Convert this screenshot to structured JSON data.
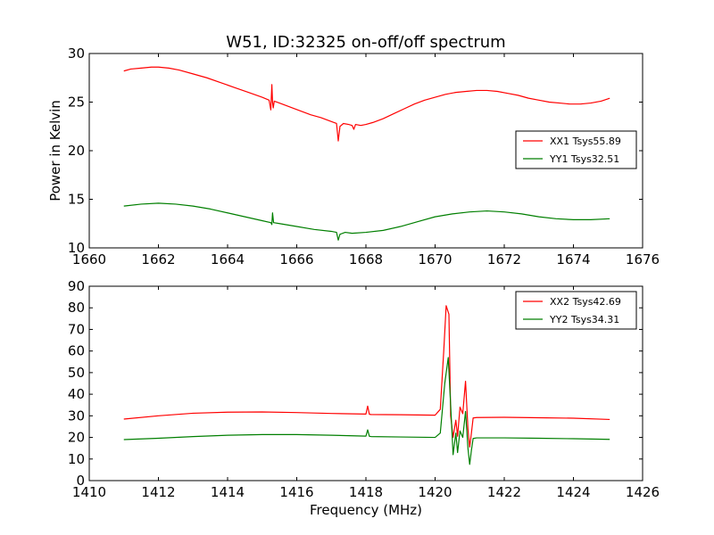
{
  "chart_data": [
    {
      "type": "line",
      "title": "W51, ID:32325 on-off/off spectrum",
      "xlabel": "",
      "ylabel": "Power in Kelvin",
      "xlim": [
        1660,
        1676
      ],
      "ylim": [
        10,
        30
      ],
      "xticks": [
        1660,
        1662,
        1664,
        1666,
        1668,
        1670,
        1672,
        1674,
        1676
      ],
      "yticks": [
        10,
        15,
        20,
        25,
        30
      ],
      "legend_position": "center-right",
      "series": [
        {
          "name": "XX1 Tsys55.89",
          "color": "#ff0000",
          "x": [
            1661.0,
            1661.2,
            1661.5,
            1661.8,
            1662.0,
            1662.3,
            1662.6,
            1663.0,
            1663.4,
            1663.8,
            1664.2,
            1664.6,
            1665.0,
            1665.2,
            1665.25,
            1665.28,
            1665.3,
            1665.32,
            1665.35,
            1665.5,
            1665.8,
            1666.1,
            1666.4,
            1666.7,
            1667.0,
            1667.15,
            1667.2,
            1667.25,
            1667.35,
            1667.5,
            1667.6,
            1667.65,
            1667.7,
            1667.85,
            1668.0,
            1668.2,
            1668.5,
            1668.8,
            1669.1,
            1669.4,
            1669.7,
            1670.0,
            1670.3,
            1670.6,
            1670.9,
            1671.2,
            1671.5,
            1671.8,
            1672.1,
            1672.4,
            1672.7,
            1673.0,
            1673.3,
            1673.6,
            1673.9,
            1674.2,
            1674.5,
            1674.8,
            1675.05
          ],
          "y": [
            28.2,
            28.4,
            28.5,
            28.6,
            28.6,
            28.5,
            28.3,
            27.9,
            27.5,
            27.0,
            26.5,
            26.0,
            25.5,
            25.2,
            24.2,
            26.8,
            25.0,
            24.4,
            25.1,
            24.9,
            24.5,
            24.1,
            23.7,
            23.4,
            23.0,
            22.8,
            21.0,
            22.5,
            22.8,
            22.7,
            22.6,
            22.2,
            22.7,
            22.6,
            22.7,
            22.9,
            23.3,
            23.8,
            24.3,
            24.8,
            25.2,
            25.5,
            25.8,
            26.0,
            26.1,
            26.2,
            26.2,
            26.1,
            25.9,
            25.7,
            25.4,
            25.2,
            25.0,
            24.9,
            24.8,
            24.8,
            24.9,
            25.1,
            25.4
          ]
        },
        {
          "name": "YY1 Tsys32.51",
          "color": "#007f00",
          "x": [
            1661.0,
            1661.5,
            1662.0,
            1662.5,
            1663.0,
            1663.5,
            1664.0,
            1664.5,
            1665.0,
            1665.25,
            1665.28,
            1665.3,
            1665.33,
            1665.5,
            1666.0,
            1666.5,
            1667.0,
            1667.15,
            1667.2,
            1667.25,
            1667.4,
            1667.6,
            1668.0,
            1668.5,
            1669.0,
            1669.5,
            1670.0,
            1670.5,
            1671.0,
            1671.5,
            1672.0,
            1672.5,
            1673.0,
            1673.5,
            1674.0,
            1674.5,
            1675.05
          ],
          "y": [
            14.3,
            14.5,
            14.6,
            14.5,
            14.3,
            14.0,
            13.6,
            13.2,
            12.8,
            12.6,
            12.4,
            13.6,
            12.6,
            12.5,
            12.2,
            11.9,
            11.7,
            11.6,
            10.8,
            11.4,
            11.6,
            11.5,
            11.6,
            11.8,
            12.2,
            12.7,
            13.2,
            13.5,
            13.7,
            13.8,
            13.7,
            13.5,
            13.2,
            13.0,
            12.9,
            12.9,
            13.0
          ]
        }
      ]
    },
    {
      "type": "line",
      "title": "",
      "xlabel": "Frequency (MHz)",
      "ylabel": "",
      "xlim": [
        1410,
        1426
      ],
      "ylim": [
        0,
        90
      ],
      "xticks": [
        1410,
        1412,
        1414,
        1416,
        1418,
        1420,
        1422,
        1424,
        1426
      ],
      "yticks": [
        0,
        10,
        20,
        30,
        40,
        50,
        60,
        70,
        80,
        90
      ],
      "legend_position": "top-right",
      "series": [
        {
          "name": "XX2 Tsys42.69",
          "color": "#ff0000",
          "x": [
            1411.0,
            1412.0,
            1413.0,
            1414.0,
            1415.0,
            1416.0,
            1417.0,
            1418.0,
            1418.05,
            1418.1,
            1418.15,
            1419.0,
            1420.0,
            1420.15,
            1420.25,
            1420.32,
            1420.4,
            1420.45,
            1420.52,
            1420.6,
            1420.65,
            1420.72,
            1420.8,
            1420.88,
            1420.95,
            1421.0,
            1421.05,
            1421.1,
            1421.2,
            1422.0,
            1423.0,
            1424.0,
            1425.05
          ],
          "y": [
            28.5,
            30.0,
            31.2,
            31.7,
            31.8,
            31.5,
            31.1,
            30.8,
            34.5,
            30.7,
            30.6,
            30.5,
            30.3,
            33.0,
            60.0,
            81.0,
            77.0,
            30.0,
            20.0,
            28.0,
            20.5,
            34.0,
            31.0,
            46.0,
            24.0,
            15.5,
            22.0,
            29.0,
            29.2,
            29.3,
            29.1,
            28.9,
            28.3
          ]
        },
        {
          "name": "YY2 Tsys34.31",
          "color": "#007f00",
          "x": [
            1411.0,
            1412.0,
            1413.0,
            1414.0,
            1415.0,
            1416.0,
            1417.0,
            1418.0,
            1418.05,
            1418.1,
            1418.15,
            1419.0,
            1420.0,
            1420.15,
            1420.28,
            1420.38,
            1420.45,
            1420.52,
            1420.6,
            1420.65,
            1420.72,
            1420.8,
            1420.88,
            1420.95,
            1421.0,
            1421.05,
            1421.1,
            1421.2,
            1422.0,
            1423.0,
            1424.0,
            1425.05
          ],
          "y": [
            19.0,
            19.6,
            20.4,
            21.0,
            21.3,
            21.3,
            21.0,
            20.6,
            23.5,
            20.5,
            20.4,
            20.2,
            20.0,
            22.0,
            45.0,
            57.0,
            35.0,
            12.0,
            22.0,
            13.0,
            23.0,
            20.0,
            32.0,
            15.0,
            7.5,
            14.0,
            19.5,
            19.8,
            19.8,
            19.6,
            19.4,
            19.1
          ]
        }
      ]
    }
  ]
}
